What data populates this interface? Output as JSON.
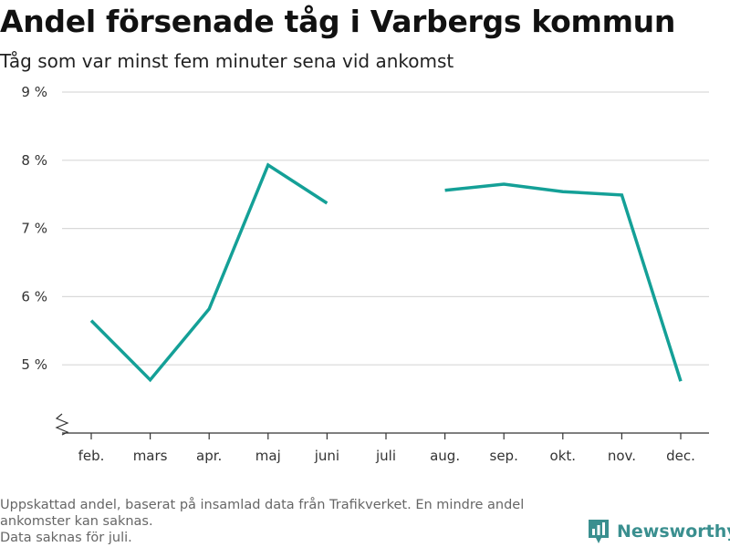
{
  "header": {
    "title": "Andel försenade tåg i Varbergs kommun",
    "subtitle": "Tåg som var minst fem minuter sena vid ankomst"
  },
  "chart_data": {
    "type": "line",
    "title": "Andel försenade tåg i Varbergs kommun",
    "subtitle": "Tåg som var minst fem minuter sena vid ankomst",
    "categories": [
      "feb.",
      "mars",
      "apr.",
      "maj",
      "juni",
      "juli",
      "aug.",
      "sep.",
      "okt.",
      "nov.",
      "dec."
    ],
    "series": [
      {
        "values": [
          5.65,
          4.78,
          5.82,
          7.93,
          7.37,
          null,
          7.56,
          7.65,
          7.54,
          7.49,
          4.76
        ]
      }
    ],
    "yticks": [
      "5 %",
      "6 %",
      "7 %",
      "8 %",
      "9 %"
    ],
    "ytick_values": [
      5,
      6,
      7,
      8,
      9
    ],
    "ylim": [
      4.0,
      9.0
    ],
    "axis_break": true,
    "grid": true,
    "line_color": "#14a097"
  },
  "footnote": {
    "line1": "Uppskattad andel, baserat på insamlad data från Trafikverket. En mindre andel",
    "line2": "ankomster kan saknas.",
    "line3": "Data saknas för juli."
  },
  "brand": {
    "name": "Newsworthy",
    "icon": "newsworthy-logo-icon",
    "color": "#3a8f8f"
  }
}
